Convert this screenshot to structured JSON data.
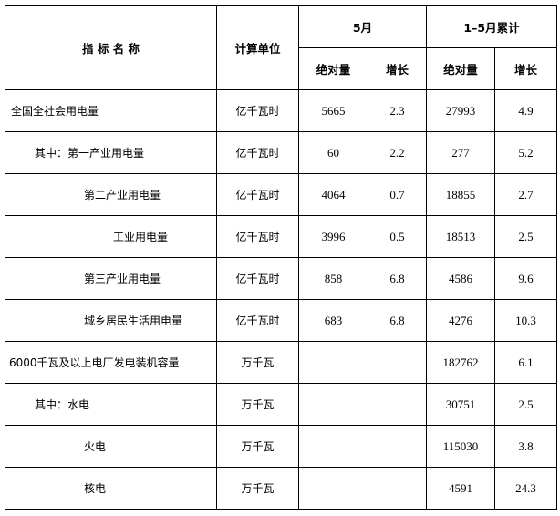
{
  "header": {
    "name": "指 标 名 称",
    "unit": "计算单位",
    "month": "5月",
    "cumulative": "1–5月累计",
    "absolute": "绝对量",
    "growth": "增长"
  },
  "rows": [
    {
      "name": "全国全社会用电量",
      "unit": "亿千瓦时",
      "m_abs": "5665",
      "m_growth": "2.3",
      "c_abs": "27993",
      "c_growth": "4.9"
    },
    {
      "name": "其中：第一产业用电量",
      "unit": "亿千瓦时",
      "m_abs": "60",
      "m_growth": "2.2",
      "c_abs": "277",
      "c_growth": "5.2"
    },
    {
      "name": "第二产业用电量",
      "unit": "亿千瓦时",
      "m_abs": "4064",
      "m_growth": "0.7",
      "c_abs": "18855",
      "c_growth": "2.7"
    },
    {
      "name": "工业用电量",
      "unit": "亿千瓦时",
      "m_abs": "3996",
      "m_growth": "0.5",
      "c_abs": "18513",
      "c_growth": "2.5"
    },
    {
      "name": "第三产业用电量",
      "unit": "亿千瓦时",
      "m_abs": "858",
      "m_growth": "6.8",
      "c_abs": "4586",
      "c_growth": "9.6"
    },
    {
      "name": "城乡居民生活用电量",
      "unit": "亿千瓦时",
      "m_abs": "683",
      "m_growth": "6.8",
      "c_abs": "4276",
      "c_growth": "10.3"
    },
    {
      "name": "6000千瓦及以上电厂发电装机容量",
      "unit": "万千瓦",
      "m_abs": "",
      "m_growth": "",
      "c_abs": "182762",
      "c_growth": "6.1"
    },
    {
      "name": "其中：水电",
      "unit": "万千瓦",
      "m_abs": "",
      "m_growth": "",
      "c_abs": "30751",
      "c_growth": "2.5"
    },
    {
      "name": "火电",
      "unit": "万千瓦",
      "m_abs": "",
      "m_growth": "",
      "c_abs": "115030",
      "c_growth": "3.8"
    },
    {
      "name": "核电",
      "unit": "万千瓦",
      "m_abs": "",
      "m_growth": "",
      "c_abs": "4591",
      "c_growth": "24.3"
    }
  ]
}
